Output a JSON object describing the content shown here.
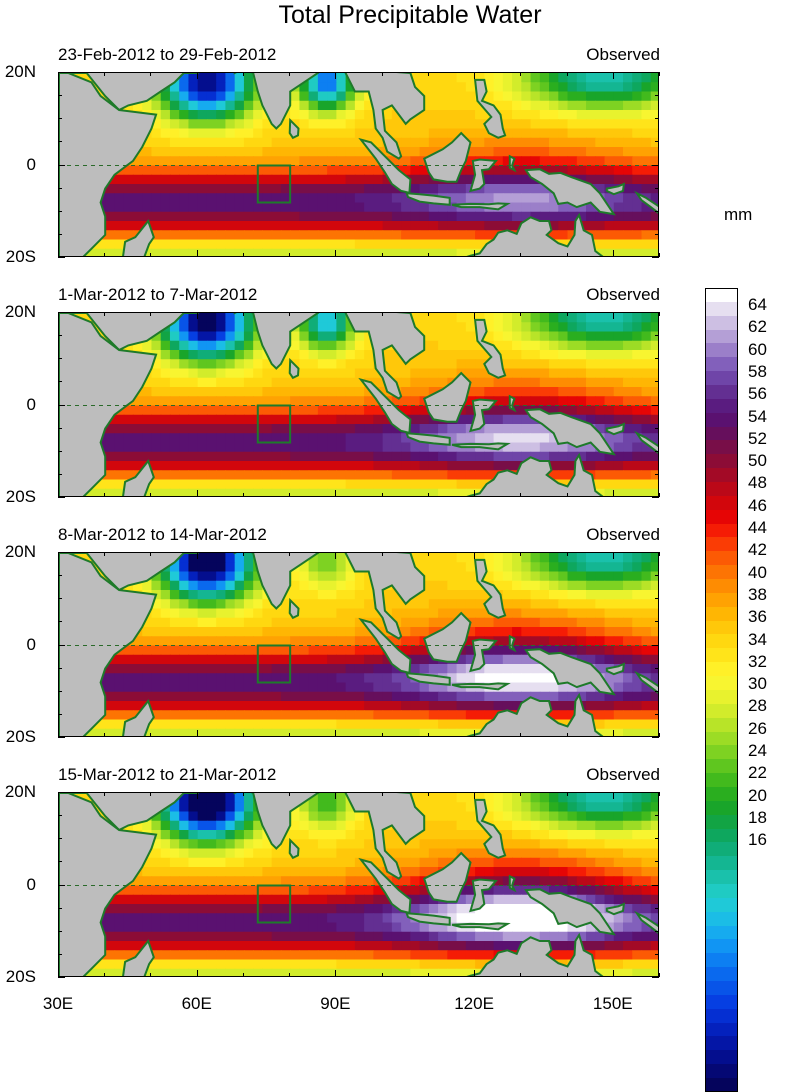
{
  "title": "Total Precipitable Water",
  "units": "mm",
  "panels": [
    {
      "period": "23-Feb-2012 to 29-Feb-2012",
      "tag": "Observed"
    },
    {
      "period": "1-Mar-2012 to 7-Mar-2012",
      "tag": "Observed"
    },
    {
      "period": "8-Mar-2012 to 14-Mar-2012",
      "tag": "Observed"
    },
    {
      "period": "15-Mar-2012 to 21-Mar-2012",
      "tag": "Observed"
    }
  ],
  "lat_labels": [
    "20N",
    "0",
    "20S"
  ],
  "lon_labels": [
    "30E",
    "60E",
    "90E",
    "120E",
    "150E"
  ],
  "colorbar": {
    "labels": [
      "64",
      "62",
      "60",
      "58",
      "56",
      "54",
      "52",
      "50",
      "48",
      "46",
      "44",
      "42",
      "40",
      "38",
      "36",
      "34",
      "32",
      "30",
      "28",
      "26",
      "24",
      "22",
      "20",
      "18",
      "16"
    ],
    "colors": [
      "#ffffff",
      "#e6dff0",
      "#cdbfe3",
      "#b49fd6",
      "#9b7fc9",
      "#8260bb",
      "#6f45a8",
      "#632f92",
      "#5a1c80",
      "#5a1170",
      "#660f5c",
      "#780e48",
      "#8c0c36",
      "#a30a26",
      "#bb0818",
      "#d2060c",
      "#e60505",
      "#f51c05",
      "#fa3c05",
      "#fc5a04",
      "#fd7403",
      "#fe8c02",
      "#ffa202",
      "#ffb603",
      "#ffc80a",
      "#ffd810",
      "#ffe41a",
      "#fff028",
      "#f8f530",
      "#e8f22e",
      "#d2ec2b",
      "#b8e428",
      "#9cdc25",
      "#7ed222",
      "#5fc61f",
      "#42ba1d",
      "#2aae1f",
      "#19a52a",
      "#12a444",
      "#0ea75e",
      "#10ad78",
      "#14b692",
      "#1ac1ab",
      "#1fcbc3",
      "#1fc9d8",
      "#1bbde6",
      "#16abef",
      "#1195f3",
      "#0d7ff2",
      "#0a69ee",
      "#0854e8",
      "#063fe2",
      "#052fd2",
      "#0421bd",
      "#0416a6",
      "#040e8e",
      "#050874",
      "#05045c"
    ]
  }
}
